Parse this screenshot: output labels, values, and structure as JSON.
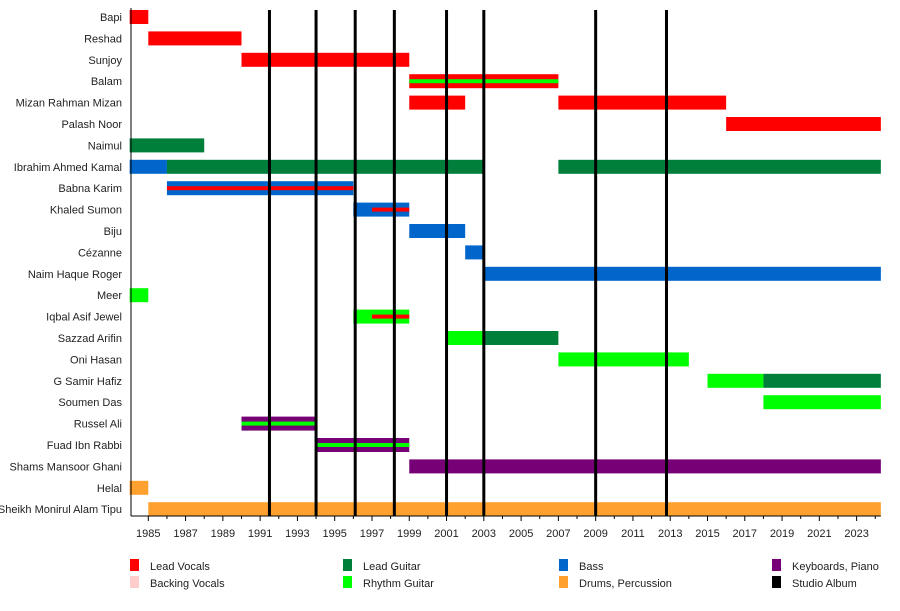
{
  "chart_data": {
    "type": "timeline",
    "xlim": [
      1984,
      2024.3
    ],
    "x_ticks": [
      1985,
      1987,
      1989,
      1991,
      1993,
      1995,
      1997,
      1999,
      2001,
      2003,
      2005,
      2007,
      2009,
      2011,
      2013,
      2015,
      2017,
      2019,
      2021,
      2023
    ],
    "roles": {
      "lead_vocals": {
        "label": "Lead Vocals",
        "color": "#ff0000"
      },
      "backing_vocals": {
        "label": "Backing Vocals",
        "color": "#ffcccc"
      },
      "lead_guitar": {
        "label": "Lead Guitar",
        "color": "#007f3a"
      },
      "rhythm_guitar": {
        "label": "Rhythm Guitar",
        "color": "#00ff00"
      },
      "bass": {
        "label": "Bass",
        "color": "#0066cc"
      },
      "drums": {
        "label": "Drums, Percussion",
        "color": "#ffa02f"
      },
      "keyboards": {
        "label": "Keyboards, Piano",
        "color": "#770077"
      },
      "album": {
        "label": "Studio Album",
        "color": "#000000"
      }
    },
    "legend_order": [
      "lead_vocals",
      "backing_vocals",
      "lead_guitar",
      "rhythm_guitar",
      "bass",
      "drums",
      "keyboards",
      "album"
    ],
    "members": [
      {
        "name": "Bapi",
        "bars": [
          {
            "role": "lead_vocals",
            "from": 1984,
            "to": 1985
          }
        ]
      },
      {
        "name": "Reshad",
        "bars": [
          {
            "role": "lead_vocals",
            "from": 1985,
            "to": 1990
          }
        ]
      },
      {
        "name": "Sunjoy",
        "bars": [
          {
            "role": "lead_vocals",
            "from": 1990,
            "to": 1999
          }
        ]
      },
      {
        "name": "Balam",
        "bars": [
          {
            "role": "lead_vocals",
            "from": 1999,
            "to": 2007,
            "stripe": "rhythm_guitar"
          }
        ]
      },
      {
        "name": "Mizan Rahman Mizan",
        "bars": [
          {
            "role": "lead_vocals",
            "from": 1999,
            "to": 2002
          },
          {
            "role": "lead_vocals",
            "from": 2007,
            "to": 2016
          }
        ]
      },
      {
        "name": "Palash Noor",
        "bars": [
          {
            "role": "lead_vocals",
            "from": 2016,
            "to": 2024.3
          }
        ]
      },
      {
        "name": "Naimul",
        "bars": [
          {
            "role": "lead_guitar",
            "from": 1984,
            "to": 1988
          }
        ]
      },
      {
        "name": "Ibrahim Ahmed Kamal",
        "bars": [
          {
            "role": "bass",
            "from": 1984,
            "to": 1986
          },
          {
            "role": "lead_guitar",
            "from": 1986,
            "to": 2003
          },
          {
            "role": "lead_guitar",
            "from": 2007,
            "to": 2024.3
          }
        ]
      },
      {
        "name": "Babna Karim",
        "bars": [
          {
            "role": "bass",
            "from": 1986,
            "to": 1996,
            "stripe": "lead_vocals"
          }
        ]
      },
      {
        "name": "Khaled Sumon",
        "bars": [
          {
            "role": "bass",
            "from": 1996,
            "to": 1999
          },
          {
            "role": "stripe_only",
            "stripe": "lead_vocals",
            "from": 1997,
            "to": 1999
          }
        ]
      },
      {
        "name": "Biju",
        "bars": [
          {
            "role": "bass",
            "from": 1999,
            "to": 2002
          }
        ]
      },
      {
        "name": "Cézanne",
        "bars": [
          {
            "role": "bass",
            "from": 2002,
            "to": 2003
          }
        ]
      },
      {
        "name": "Naim Haque Roger",
        "bars": [
          {
            "role": "bass",
            "from": 2003,
            "to": 2024.3
          }
        ]
      },
      {
        "name": "Meer",
        "bars": [
          {
            "role": "rhythm_guitar",
            "from": 1984,
            "to": 1985
          }
        ]
      },
      {
        "name": "Iqbal Asif Jewel",
        "bars": [
          {
            "role": "rhythm_guitar",
            "from": 1996,
            "to": 1999
          },
          {
            "role": "stripe_only",
            "stripe": "lead_vocals",
            "from": 1997,
            "to": 1999
          }
        ]
      },
      {
        "name": "Sazzad Arifin",
        "bars": [
          {
            "role": "rhythm_guitar",
            "from": 2001,
            "to": 2003
          },
          {
            "role": "lead_guitar",
            "from": 2003,
            "to": 2007
          }
        ]
      },
      {
        "name": "Oni Hasan",
        "bars": [
          {
            "role": "rhythm_guitar",
            "from": 2007,
            "to": 2014
          }
        ]
      },
      {
        "name": "G Samir Hafiz",
        "bars": [
          {
            "role": "rhythm_guitar",
            "from": 2015,
            "to": 2018
          },
          {
            "role": "lead_guitar",
            "from": 2018,
            "to": 2024.3
          }
        ]
      },
      {
        "name": "Soumen Das",
        "bars": [
          {
            "role": "rhythm_guitar",
            "from": 2018,
            "to": 2024.3
          }
        ]
      },
      {
        "name": "Russel Ali",
        "bars": [
          {
            "role": "keyboards",
            "from": 1990,
            "to": 1994,
            "stripe": "rhythm_guitar"
          }
        ]
      },
      {
        "name": "Fuad Ibn Rabbi",
        "bars": [
          {
            "role": "keyboards",
            "from": 1994,
            "to": 1999,
            "stripe": "rhythm_guitar"
          }
        ]
      },
      {
        "name": "Shams Mansoor Ghani",
        "bars": [
          {
            "role": "keyboards",
            "from": 1999,
            "to": 2024.3
          }
        ]
      },
      {
        "name": "Helal",
        "bars": [
          {
            "role": "drums",
            "from": 1984,
            "to": 1985
          }
        ]
      },
      {
        "name": "Sheikh Monirul Alam Tipu",
        "bars": [
          {
            "role": "drums",
            "from": 1985,
            "to": 2024.3
          }
        ]
      }
    ],
    "albums": [
      1991.5,
      1994.0,
      1996.1,
      1998.2,
      2001.0,
      2003.0,
      2009.0,
      2012.8
    ]
  }
}
